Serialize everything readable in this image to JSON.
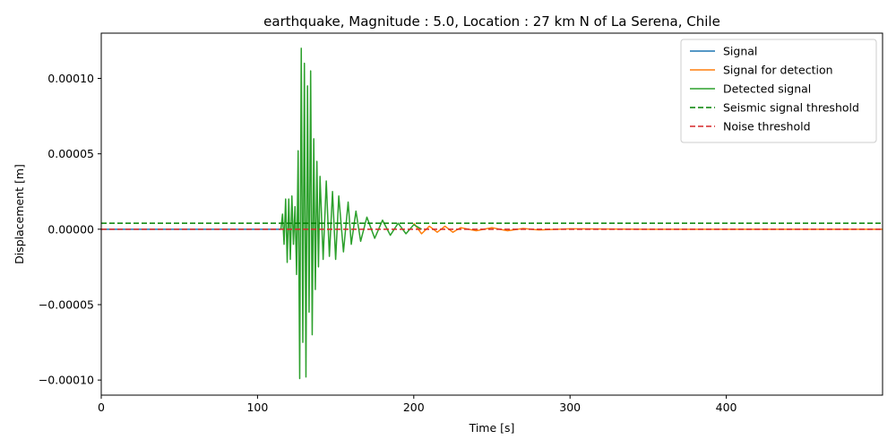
{
  "chart_data": {
    "type": "line",
    "title": "earthquake, Magnitude : 5.0, Location : 27 km N of La Serena, Chile",
    "xlabel": "Time [s]",
    "ylabel": "Displacement [m]",
    "xlim": [
      0,
      500
    ],
    "ylim": [
      -0.00011,
      0.00013
    ],
    "x_ticks": [
      0,
      100,
      200,
      300,
      400
    ],
    "x_tick_labels": [
      "0",
      "100",
      "200",
      "300",
      "400"
    ],
    "y_ticks": [
      -0.0001,
      -5e-05,
      0,
      5e-05,
      0.0001
    ],
    "y_tick_labels": [
      "−0.00010",
      "−0.00005",
      "0.00000",
      "0.00005",
      "0.00010"
    ],
    "grid": false,
    "legend_position": "top-right",
    "series": [
      {
        "name": "Signal",
        "color": "#1f77b4",
        "style": "solid",
        "x": [
          0,
          115
        ],
        "y": [
          0,
          0
        ]
      },
      {
        "name": "Signal for detection",
        "color": "#ff7f0e",
        "style": "solid",
        "x": [
          200,
          205,
          210,
          215,
          220,
          225,
          230,
          240,
          250,
          260,
          270,
          280,
          300,
          350,
          400,
          450,
          500
        ],
        "y": [
          4e-06,
          -3e-06,
          2e-06,
          -2e-06,
          2e-06,
          -2e-06,
          1e-06,
          -1e-06,
          1e-06,
          -1e-06,
          5e-07,
          -5e-07,
          3e-07,
          0,
          0,
          0,
          0
        ]
      },
      {
        "name": "Detected signal",
        "color": "#2ca02c",
        "style": "solid",
        "x": [
          115,
          116,
          117,
          118,
          119,
          120,
          121,
          122,
          123,
          124,
          125,
          126,
          127,
          128,
          129,
          130,
          131,
          132,
          133,
          134,
          135,
          136,
          137,
          138,
          139,
          140,
          142,
          144,
          146,
          148,
          150,
          152,
          155,
          158,
          160,
          163,
          166,
          170,
          175,
          180,
          185,
          190,
          195,
          200,
          205
        ],
        "y": [
          0,
          1e-05,
          -1e-05,
          2e-05,
          -2.2e-05,
          2e-05,
          -2e-05,
          2.2e-05,
          -1e-05,
          1.5e-05,
          -3e-05,
          5.2e-05,
          -9.9e-05,
          0.00012,
          -7.5e-05,
          0.00011,
          -9.8e-05,
          9.5e-05,
          -5.5e-05,
          0.000105,
          -7e-05,
          6e-05,
          -4e-05,
          4.5e-05,
          -2.5e-05,
          3.5e-05,
          -2e-05,
          3.2e-05,
          -1.8e-05,
          2.5e-05,
          -2e-05,
          2.2e-05,
          -1.5e-05,
          1.8e-05,
          -1e-05,
          1.2e-05,
          -8e-06,
          8e-06,
          -6e-06,
          6e-06,
          -4e-06,
          4e-06,
          -3e-06,
          3e-06,
          0
        ]
      },
      {
        "name": "Seismic signal threshold",
        "color": "#008000",
        "style": "dashed",
        "x": [
          0,
          500
        ],
        "y": [
          4e-06,
          4e-06
        ]
      },
      {
        "name": "Noise threshold",
        "color": "#d62728",
        "style": "dashed",
        "x": [
          0,
          500
        ],
        "y": [
          0,
          0
        ]
      }
    ]
  }
}
